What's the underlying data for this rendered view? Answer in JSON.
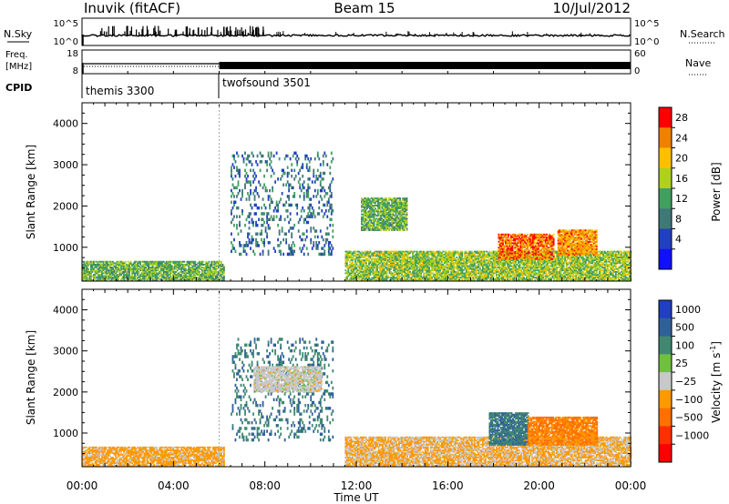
{
  "header": {
    "station": "Inuvik (fitACF)",
    "beam": "Beam 15",
    "date": "10/Jul/2012"
  },
  "left_labels": {
    "nsky": "N.Sky",
    "freq": "Freq.",
    "freq_unit": "[MHz]",
    "cpid": "CPID"
  },
  "right_labels": {
    "nsearch": "N.Search",
    "nave": "Nave"
  },
  "noise_axis": {
    "left_ticks": [
      "10^5",
      "10^0"
    ],
    "right_ticks": [
      "10^5",
      "10^0"
    ]
  },
  "freq_axis": {
    "left_ticks": [
      "18",
      "8"
    ],
    "right_ticks": [
      "60",
      "0"
    ]
  },
  "cpid_programs": [
    {
      "name": "themis 3300",
      "start_hour": 0
    },
    {
      "name": "twofsound 3501",
      "start_hour": 6
    }
  ],
  "panels": {
    "ylabel": "Slant Range [km]",
    "yticks": [
      "4000",
      "3000",
      "2000",
      "1000"
    ],
    "xlabel": "Time UT",
    "xticks": [
      "00:00",
      "04:00",
      "08:00",
      "12:00",
      "16:00",
      "20:00",
      "00:00"
    ]
  },
  "power_scale": {
    "label": "Power [dB]",
    "ticks": [
      "28",
      "24",
      "20",
      "16",
      "12",
      "8",
      "4"
    ],
    "colors": [
      "#ff0000",
      "#f08000",
      "#ffbf00",
      "#b0d020",
      "#40a060",
      "#407878",
      "#2040c0",
      "#1010ff"
    ]
  },
  "velocity_scale": {
    "label": "Velocity [m s",
    "label_sup": "-1",
    "label_end": "]",
    "ticks": [
      "1000",
      "500",
      "100",
      "25",
      "−25",
      "−100",
      "−500",
      "−1000"
    ],
    "colors": [
      "#2040c0",
      "#30609a",
      "#408870",
      "#70c040",
      "#c8c8c8",
      "#ff9900",
      "#ff7000",
      "#ff3000",
      "#ff0000"
    ]
  },
  "chart_data": [
    {
      "type": "heatmap",
      "title": "Power",
      "x_axis": "Time UT (hours)",
      "x_range": [
        0,
        24
      ],
      "y_axis": "Slant Range [km]",
      "y_range": [
        180,
        4500
      ],
      "value_label": "Power [dB]",
      "value_range": [
        0,
        30
      ],
      "features": [
        {
          "t_start": 0,
          "t_end": 6.2,
          "range_start": 180,
          "range_end": 650,
          "value": 14
        },
        {
          "t_start": 11.5,
          "t_end": 24,
          "range_start": 180,
          "range_end": 900,
          "value": 16
        },
        {
          "t_start": 18.2,
          "t_end": 20.6,
          "range_start": 700,
          "range_end": 1300,
          "value": 26
        },
        {
          "t_start": 20.8,
          "t_end": 22.5,
          "range_start": 800,
          "range_end": 1400,
          "value": 24
        },
        {
          "t_start": 12.2,
          "t_end": 14.2,
          "range_start": 1400,
          "range_end": 2200,
          "value": 14
        },
        {
          "t_start": 6.5,
          "t_end": 11,
          "range_start": 800,
          "range_end": 3300,
          "value": 8
        }
      ]
    },
    {
      "type": "heatmap",
      "title": "Velocity",
      "x_axis": "Time UT (hours)",
      "x_range": [
        0,
        24
      ],
      "y_axis": "Slant Range [km]",
      "y_range": [
        180,
        4500
      ],
      "value_label": "Velocity [m s-1]",
      "value_range": [
        -1000,
        1000
      ],
      "features": [
        {
          "t_start": 0,
          "t_end": 6.2,
          "range_start": 180,
          "range_end": 650,
          "value": -200
        },
        {
          "t_start": 11.5,
          "t_end": 24,
          "range_start": 180,
          "range_end": 900,
          "value": -150
        },
        {
          "t_start": 17.8,
          "t_end": 19.5,
          "range_start": 700,
          "range_end": 1500,
          "value": 600
        },
        {
          "t_start": 19.5,
          "t_end": 22.5,
          "range_start": 700,
          "range_end": 1400,
          "value": -400
        },
        {
          "t_start": 6.5,
          "t_end": 11,
          "range_start": 800,
          "range_end": 3300,
          "value": 600
        },
        {
          "t_start": 7.5,
          "t_end": 10.5,
          "range_start": 2000,
          "range_end": 2600,
          "value": 0
        }
      ]
    }
  ]
}
